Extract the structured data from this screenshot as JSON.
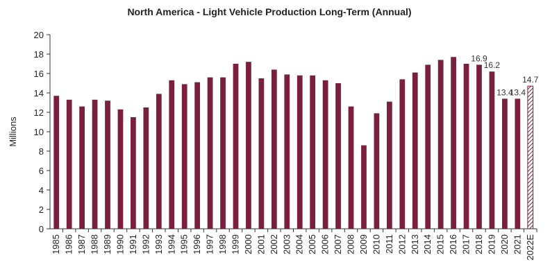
{
  "chart_data": {
    "type": "bar",
    "title": "North America  - Light Vehicle Production Long-Term (Annual)",
    "xlabel": "",
    "ylabel": "Millions",
    "ylim": [
      0,
      20
    ],
    "yticks": [
      0,
      2,
      4,
      6,
      8,
      10,
      12,
      14,
      16,
      18,
      20
    ],
    "grid": false,
    "bar_color": "#7a1f3d",
    "estimate_pattern": "hatched",
    "categories": [
      "1985",
      "1986",
      "1987",
      "1988",
      "1989",
      "1990",
      "1991",
      "1992",
      "1993",
      "1994",
      "1995",
      "1996",
      "1997",
      "1998",
      "1999",
      "2000",
      "2001",
      "2002",
      "2003",
      "2004",
      "2005",
      "2006",
      "2007",
      "2008",
      "2009",
      "2010",
      "2011",
      "2012",
      "2013",
      "2014",
      "2015",
      "2016",
      "2017",
      "2018",
      "2019",
      "2020",
      "2021",
      "2022E"
    ],
    "values": [
      13.7,
      13.3,
      12.6,
      13.3,
      13.2,
      12.3,
      11.5,
      12.5,
      13.9,
      15.3,
      14.9,
      15.1,
      15.6,
      15.6,
      17.0,
      17.2,
      15.5,
      16.4,
      15.9,
      15.8,
      15.8,
      15.3,
      15.0,
      12.6,
      8.6,
      11.9,
      13.1,
      15.4,
      16.1,
      16.9,
      17.4,
      17.7,
      17.0,
      16.9,
      16.2,
      13.4,
      13.4,
      14.7
    ],
    "estimate_flags": [
      false,
      false,
      false,
      false,
      false,
      false,
      false,
      false,
      false,
      false,
      false,
      false,
      false,
      false,
      false,
      false,
      false,
      false,
      false,
      false,
      false,
      false,
      false,
      false,
      false,
      false,
      false,
      false,
      false,
      false,
      false,
      false,
      false,
      false,
      false,
      false,
      false,
      true
    ],
    "data_labels": [
      {
        "category": "2018",
        "text": "16.9"
      },
      {
        "category": "2019",
        "text": "16.2"
      },
      {
        "category": "2020",
        "text": "13.4"
      },
      {
        "category": "2021",
        "text": "13.4"
      },
      {
        "category": "2022E",
        "text": "14.7"
      }
    ]
  }
}
